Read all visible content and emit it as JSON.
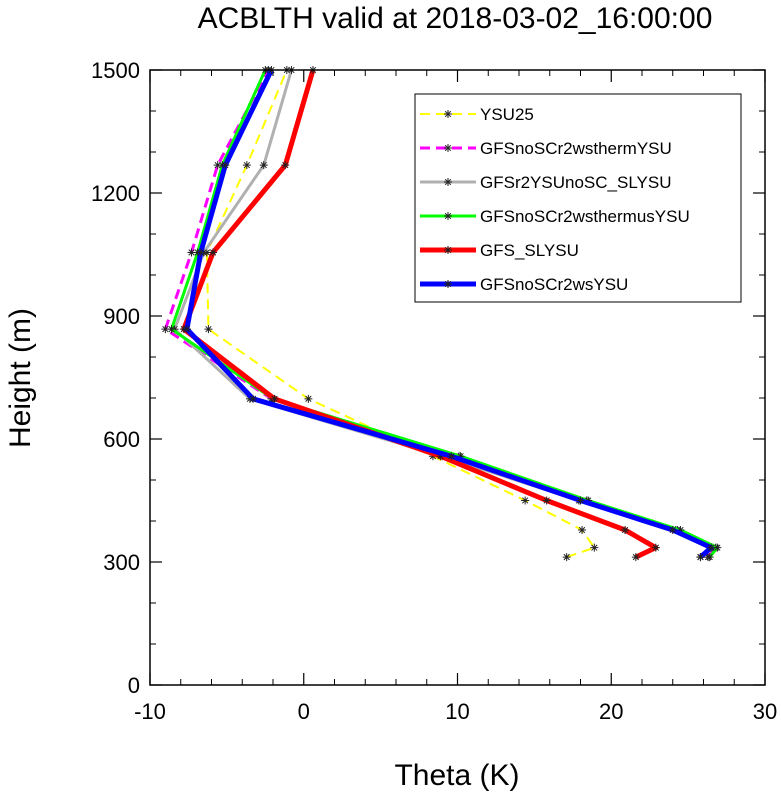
{
  "chart_data": {
    "type": "line",
    "title": "ACBLTH valid at 2018-03-02_16:00:00",
    "xlabel": "Theta (K)",
    "ylabel": "Height (m)",
    "xlim": [
      -10,
      30
    ],
    "ylim": [
      0,
      1500
    ],
    "x_ticks": [
      "-10",
      "0",
      "10",
      "20",
      "30"
    ],
    "y_ticks": [
      "0",
      "300",
      "600",
      "900",
      "1200",
      "1500"
    ],
    "legend_position": "top-right",
    "series": [
      {
        "name": "YSU25",
        "color": "#ffff00",
        "dash": "dashed",
        "width": 2,
        "points": [
          [
            17.1,
            312
          ],
          [
            18.9,
            335
          ],
          [
            18.1,
            378
          ],
          [
            14.4,
            450
          ],
          [
            8.4,
            558
          ],
          [
            0.3,
            698
          ],
          [
            -6.2,
            868
          ],
          [
            -6.3,
            1055
          ],
          [
            -3.7,
            1268
          ],
          [
            -1.1,
            1500
          ]
        ]
      },
      {
        "name": "GFSnoSCr2wsthermYSU",
        "color": "#ff00ff",
        "dash": "dashed",
        "width": 3,
        "points": [
          [
            26.3,
            312
          ],
          [
            26.8,
            335
          ],
          [
            24.3,
            378
          ],
          [
            18.4,
            450
          ],
          [
            10.1,
            558
          ],
          [
            -2.1,
            698
          ],
          [
            -9.0,
            868
          ],
          [
            -7.3,
            1055
          ],
          [
            -5.6,
            1268
          ],
          [
            -2.3,
            1500
          ]
        ]
      },
      {
        "name": "GFSr2YSUnoSC_SLYSU",
        "color": "#b0b0b0",
        "dash": "solid",
        "width": 3,
        "points": [
          [
            25.8,
            312
          ],
          [
            26.6,
            335
          ],
          [
            24.2,
            378
          ],
          [
            17.9,
            450
          ],
          [
            9.0,
            558
          ],
          [
            -3.5,
            698
          ],
          [
            -8.4,
            868
          ],
          [
            -6.5,
            1055
          ],
          [
            -2.6,
            1268
          ],
          [
            -0.8,
            1500
          ]
        ]
      },
      {
        "name": "GFSnoSCr2wsthermusYSU",
        "color": "#00ff00",
        "dash": "solid",
        "width": 3,
        "points": [
          [
            26.4,
            312
          ],
          [
            26.9,
            335
          ],
          [
            24.5,
            378
          ],
          [
            18.5,
            450
          ],
          [
            10.2,
            558
          ],
          [
            -2.0,
            698
          ],
          [
            -8.6,
            868
          ],
          [
            -6.9,
            1055
          ],
          [
            -5.3,
            1268
          ],
          [
            -2.5,
            1500
          ]
        ]
      },
      {
        "name": "GFS_SLYSU",
        "color": "#ff0000",
        "dash": "solid",
        "width": 5,
        "points": [
          [
            21.6,
            312
          ],
          [
            22.9,
            335
          ],
          [
            20.9,
            378
          ],
          [
            15.8,
            450
          ],
          [
            8.9,
            558
          ],
          [
            -1.9,
            698
          ],
          [
            -7.8,
            868
          ],
          [
            -5.9,
            1055
          ],
          [
            -1.2,
            1268
          ],
          [
            0.6,
            1500
          ]
        ]
      },
      {
        "name": "GFSnoSCr2wsYSU",
        "color": "#0000ff",
        "dash": "solid",
        "width": 5,
        "points": [
          [
            25.8,
            312
          ],
          [
            26.5,
            335
          ],
          [
            24.0,
            378
          ],
          [
            18.0,
            450
          ],
          [
            9.6,
            558
          ],
          [
            -3.3,
            698
          ],
          [
            -7.6,
            868
          ],
          [
            -6.7,
            1055
          ],
          [
            -5.1,
            1268
          ],
          [
            -2.1,
            1500
          ]
        ]
      }
    ]
  }
}
